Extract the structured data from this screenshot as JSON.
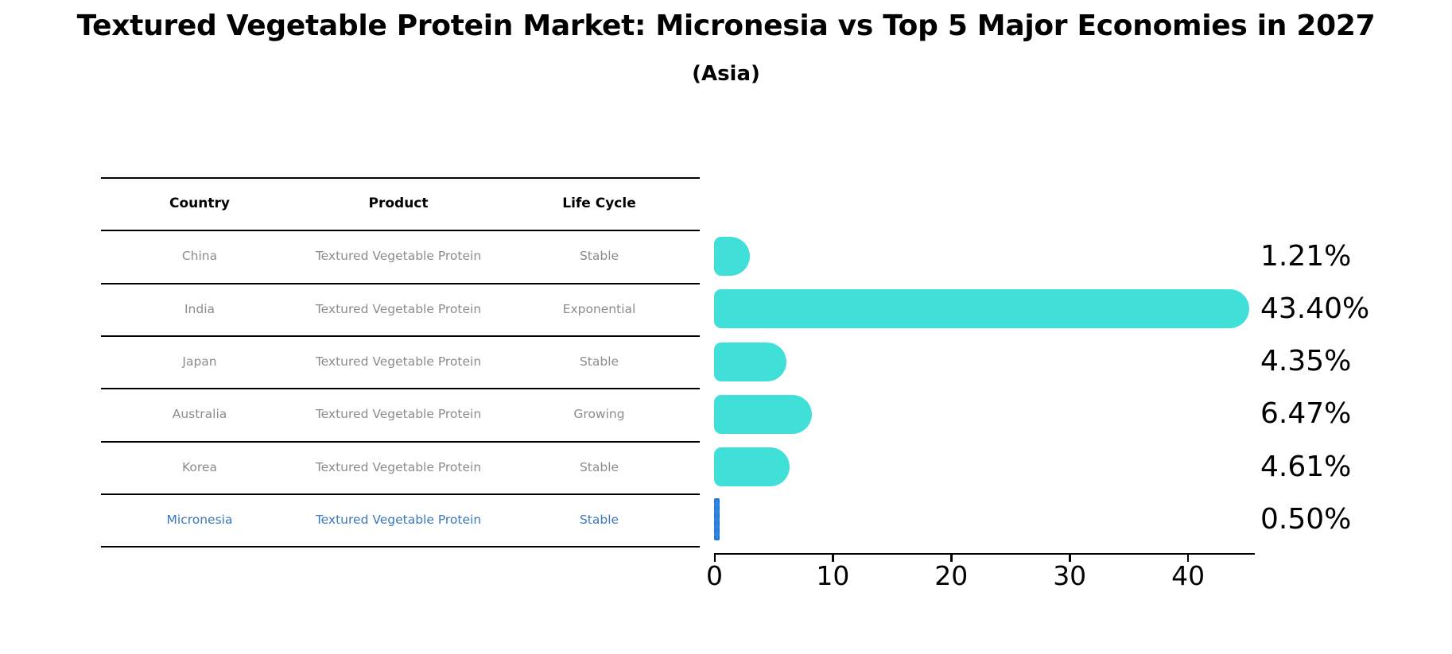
{
  "title": "Textured Vegetable Protein Market: Micronesia vs Top 5 Major Economies in 2027",
  "subtitle": "(Asia)",
  "table": {
    "headers": [
      "Country",
      "Product",
      "Life Cycle"
    ],
    "rows": [
      {
        "country": "China",
        "product": "Textured Vegetable Protein",
        "life_cycle": "Stable",
        "highlighted": false
      },
      {
        "country": "India",
        "product": "Textured Vegetable Protein",
        "life_cycle": "Exponential",
        "highlighted": false
      },
      {
        "country": "Japan",
        "product": "Textured Vegetable Protein",
        "life_cycle": "Stable",
        "highlighted": false
      },
      {
        "country": "Australia",
        "product": "Textured Vegetable Protein",
        "life_cycle": "Growing",
        "highlighted": false
      },
      {
        "country": "Korea",
        "product": "Textured Vegetable Protein",
        "life_cycle": "Stable",
        "highlighted": false
      },
      {
        "country": "Micronesia",
        "product": "Textured Vegetable Protein",
        "life_cycle": "Stable",
        "highlighted": true
      }
    ]
  },
  "chart_data": {
    "type": "bar",
    "orientation": "horizontal",
    "title": "Textured Vegetable Protein Market: Micronesia vs Top 5 Major Economies in 2027",
    "subtitle": "(Asia)",
    "categories": [
      "China",
      "India",
      "Japan",
      "Australia",
      "Korea",
      "Micronesia"
    ],
    "values": [
      1.21,
      43.4,
      4.35,
      6.47,
      4.61,
      0.5
    ],
    "value_labels": [
      "1.21%",
      "43.40%",
      "4.35%",
      "6.47%",
      "4.61%",
      "0.50%"
    ],
    "x_ticks": [
      0,
      10,
      20,
      30,
      40
    ],
    "xlim": [
      0,
      45.7
    ],
    "grid": false,
    "legend": false,
    "highlight_index": 5,
    "colors": {
      "bar": "#40E0D8",
      "highlight_bar_fill": "#2E86E0",
      "highlight_bar_edge": "#1F78DC",
      "highlight_text": "#3A79BD",
      "row_text": "#8C8C8C",
      "header_text": "#000000",
      "axis": "#000000"
    }
  }
}
